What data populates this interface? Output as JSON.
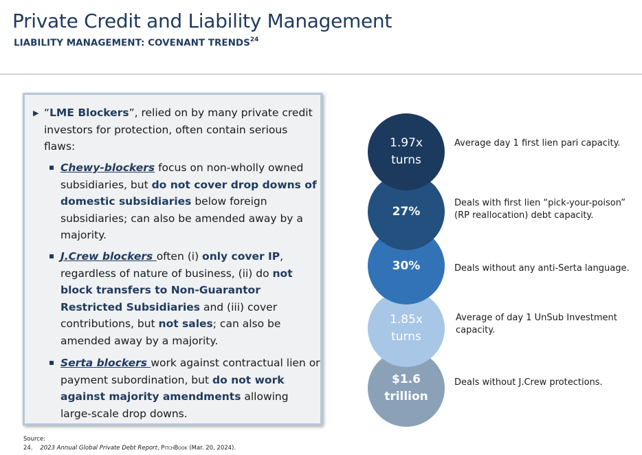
{
  "header": {
    "title": "Private Credit and Liability Management",
    "subtitle": "LIABILITY MANAGEMENT: COVENANT TRENDS",
    "footnote_ref": "24"
  },
  "main_bullet": {
    "open_quote": "“",
    "term": "LME Blockers",
    "rest": "”, relied on by many private credit investors for protection, often contain serious flaws:"
  },
  "sub_bullets": [
    {
      "term": "Chewy-blockers",
      "t1": " focus on non-wholly owned subsidiaries, but ",
      "b1": "do not cover drop downs of domestic subsidiaries",
      "t2": " below foreign subsidiaries; can also be amended away by a majority."
    },
    {
      "term": "J.Crew blockers ",
      "t1": "often (i) ",
      "b1": "only cover IP",
      "t2": ", regardless of nature of business, (ii) do ",
      "b2": "not block transfers to Non-Guarantor Restricted Subsidiaries",
      "t3": " and (iii) cover contributions, but ",
      "b3": "not sales",
      "t4": "; can also be amended away by a majority."
    },
    {
      "term": "Serta blockers ",
      "t1": "work against contractual lien or payment subordination, but ",
      "b1": "do not work against majority amendments",
      "t2": " allowing large-scale drop downs."
    }
  ],
  "stats": [
    {
      "line1": "1.97x",
      "line2": "turns",
      "desc": "Average day 1 first lien pari capacity.",
      "color": "#1c3a5e"
    },
    {
      "line1": "27%",
      "line2": "",
      "desc": "Deals with first lien “pick-your-poison” (RP reallocation) debt capacity.",
      "color": "#23507f"
    },
    {
      "line1": "30%",
      "line2": "",
      "desc": "Deals without any anti-Serta language.",
      "color": "#3273b7"
    },
    {
      "line1": "1.85x",
      "line2": "turns",
      "desc": "Average of day 1 UnSub Investment capacity.",
      "color": "#a8c6e5"
    },
    {
      "line1": "$1.6",
      "line2": "trillion",
      "desc": "Deals without J.Crew protections.",
      "color": "#8aa1b8"
    }
  ],
  "source": {
    "label": "Source:",
    "num": "24.",
    "report": "2023 Annual Global Private Debt Report",
    "sep": ", ",
    "publisher": "PitchBook",
    "date": " (Mar. 20, 2024)."
  }
}
